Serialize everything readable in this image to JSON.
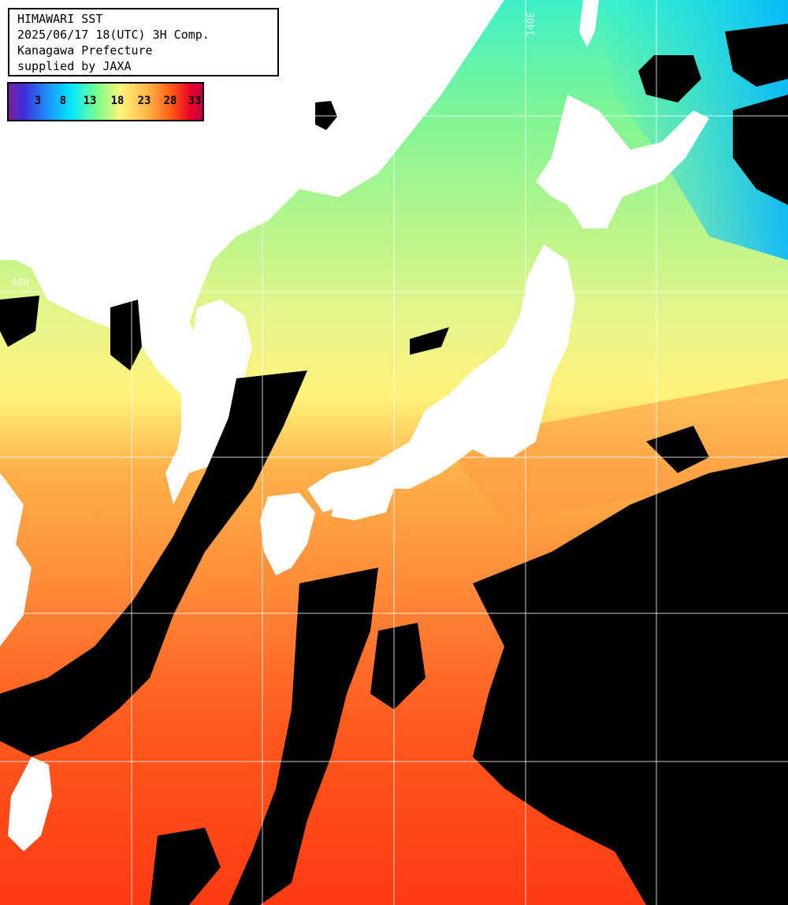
{
  "header": {
    "title": "HIMAWARI SST",
    "datetime": "2025/06/17 18(UTC) 3H Comp.",
    "region": "Kanagawa Prefecture",
    "credit": "supplied by JAXA"
  },
  "legend": {
    "ticks": [
      "3",
      "8",
      "13",
      "18",
      "23",
      "28",
      "33"
    ],
    "colors": [
      "#7a1fa0",
      "#1e90ff",
      "#00e5ff",
      "#7dff8c",
      "#fff27a",
      "#ffb347",
      "#ff5a14",
      "#e8002a"
    ]
  },
  "grid_labels": {
    "lon_140": "140E",
    "lat_40": "40N"
  },
  "palette": {
    "land": "#ffffff",
    "cloud": "#000000",
    "grid": "#ffffff"
  }
}
